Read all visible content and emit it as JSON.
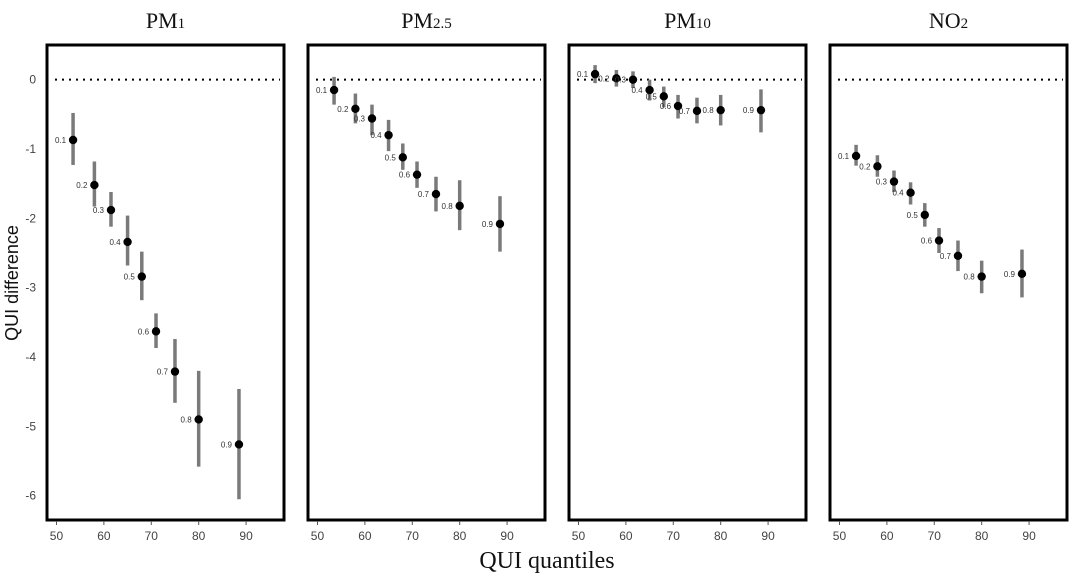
{
  "chart_data": {
    "type": "scatter",
    "xlabel": "QUI quantiles",
    "ylabel": "QUI difference",
    "xlim": [
      48,
      98
    ],
    "ylim": [
      -6.35,
      0.5
    ],
    "xticks": [
      50,
      60,
      70,
      80,
      90
    ],
    "yticks": [
      0,
      -1,
      -2,
      -3,
      -4,
      -5,
      -6
    ],
    "reference_line": 0,
    "panels": [
      {
        "title": "PM",
        "subscript": "1",
        "points": [
          {
            "label": "0.1",
            "x": 53.5,
            "y": -0.87,
            "lo": -1.23,
            "hi": -0.48
          },
          {
            "label": "0.2",
            "x": 58.0,
            "y": -1.52,
            "lo": -1.83,
            "hi": -1.18
          },
          {
            "label": "0.3",
            "x": 61.5,
            "y": -1.88,
            "lo": -2.12,
            "hi": -1.62
          },
          {
            "label": "0.4",
            "x": 65.0,
            "y": -2.34,
            "lo": -2.68,
            "hi": -1.96
          },
          {
            "label": "0.5",
            "x": 68.0,
            "y": -2.84,
            "lo": -3.18,
            "hi": -2.48
          },
          {
            "label": "0.6",
            "x": 71.0,
            "y": -3.63,
            "lo": -3.87,
            "hi": -3.37
          },
          {
            "label": "0.7",
            "x": 75.0,
            "y": -4.21,
            "lo": -4.66,
            "hi": -3.74
          },
          {
            "label": "0.8",
            "x": 80.0,
            "y": -4.9,
            "lo": -5.58,
            "hi": -4.2
          },
          {
            "label": "0.9",
            "x": 88.5,
            "y": -5.26,
            "lo": -6.05,
            "hi": -4.46
          }
        ]
      },
      {
        "title": "PM",
        "subscript": "2.5",
        "points": [
          {
            "label": "0.1",
            "x": 53.5,
            "y": -0.15,
            "lo": -0.36,
            "hi": 0.04
          },
          {
            "label": "0.2",
            "x": 58.0,
            "y": -0.42,
            "lo": -0.63,
            "hi": -0.2
          },
          {
            "label": "0.3",
            "x": 61.5,
            "y": -0.56,
            "lo": -0.8,
            "hi": -0.36
          },
          {
            "label": "0.4",
            "x": 65.0,
            "y": -0.8,
            "lo": -1.03,
            "hi": -0.58
          },
          {
            "label": "0.5",
            "x": 68.0,
            "y": -1.12,
            "lo": -1.3,
            "hi": -0.92
          },
          {
            "label": "0.6",
            "x": 71.0,
            "y": -1.37,
            "lo": -1.56,
            "hi": -1.18
          },
          {
            "label": "0.7",
            "x": 75.0,
            "y": -1.65,
            "lo": -1.9,
            "hi": -1.4
          },
          {
            "label": "0.8",
            "x": 80.0,
            "y": -1.82,
            "lo": -2.17,
            "hi": -1.45
          },
          {
            "label": "0.9",
            "x": 88.5,
            "y": -2.08,
            "lo": -2.48,
            "hi": -1.68
          }
        ]
      },
      {
        "title": "PM",
        "subscript": "10",
        "points": [
          {
            "label": "0.1",
            "x": 53.5,
            "y": 0.08,
            "lo": -0.05,
            "hi": 0.21
          },
          {
            "label": "0.2",
            "x": 58.0,
            "y": 0.02,
            "lo": -0.1,
            "hi": 0.14
          },
          {
            "label": "0.3",
            "x": 61.5,
            "y": 0.0,
            "lo": -0.12,
            "hi": 0.12
          },
          {
            "label": "0.4",
            "x": 65.0,
            "y": -0.15,
            "lo": -0.3,
            "hi": 0.0
          },
          {
            "label": "0.5",
            "x": 68.0,
            "y": -0.24,
            "lo": -0.4,
            "hi": -0.1
          },
          {
            "label": "0.6",
            "x": 71.0,
            "y": -0.38,
            "lo": -0.56,
            "hi": -0.22
          },
          {
            "label": "0.7",
            "x": 75.0,
            "y": -0.45,
            "lo": -0.63,
            "hi": -0.26
          },
          {
            "label": "0.8",
            "x": 80.0,
            "y": -0.44,
            "lo": -0.66,
            "hi": -0.22
          },
          {
            "label": "0.9",
            "x": 88.5,
            "y": -0.44,
            "lo": -0.76,
            "hi": -0.14
          }
        ]
      },
      {
        "title": "NO",
        "subscript": "2",
        "points": [
          {
            "label": "0.1",
            "x": 53.5,
            "y": -1.1,
            "lo": -1.24,
            "hi": -0.94
          },
          {
            "label": "0.2",
            "x": 58.0,
            "y": -1.25,
            "lo": -1.4,
            "hi": -1.09
          },
          {
            "label": "0.3",
            "x": 61.5,
            "y": -1.47,
            "lo": -1.62,
            "hi": -1.31
          },
          {
            "label": "0.4",
            "x": 65.0,
            "y": -1.63,
            "lo": -1.8,
            "hi": -1.48
          },
          {
            "label": "0.5",
            "x": 68.0,
            "y": -1.95,
            "lo": -2.12,
            "hi": -1.78
          },
          {
            "label": "0.6",
            "x": 71.0,
            "y": -2.32,
            "lo": -2.5,
            "hi": -2.14
          },
          {
            "label": "0.7",
            "x": 75.0,
            "y": -2.54,
            "lo": -2.76,
            "hi": -2.32
          },
          {
            "label": "0.8",
            "x": 80.0,
            "y": -2.84,
            "lo": -3.08,
            "hi": -2.61
          },
          {
            "label": "0.9",
            "x": 88.5,
            "y": -2.8,
            "lo": -3.14,
            "hi": -2.45
          }
        ]
      }
    ]
  }
}
